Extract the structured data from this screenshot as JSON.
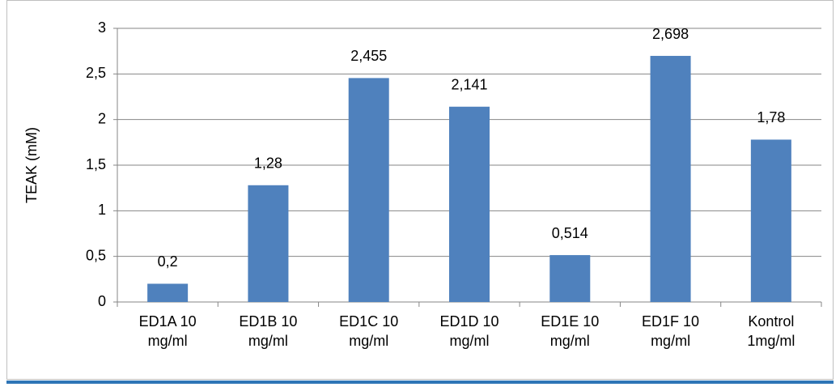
{
  "chart_data": {
    "type": "bar",
    "y_label": "TEAK (mM)",
    "categories": [
      "ED1A 10 mg/ml",
      "ED1B 10 mg/ml",
      "ED1C 10 mg/ml",
      "ED1D 10 mg/ml",
      "ED1E 10 mg/ml",
      "ED1F 10 mg/ml",
      "Kontrol 1mg/ml"
    ],
    "values": [
      0.2,
      1.28,
      2.455,
      2.141,
      0.514,
      2.698,
      1.78
    ],
    "value_labels": [
      "0,2",
      "1,28",
      "2,455",
      "2,141",
      "0,514",
      "2,698",
      "1,78"
    ],
    "color": "#4f81bd",
    "ylim": [
      0,
      3
    ],
    "yticks": [
      0,
      {
        "value": 0.5,
        "label": "0,5"
      },
      1,
      {
        "value": 1.5,
        "label": "1,5"
      },
      2,
      {
        "value": 2.5,
        "label": "2,5"
      },
      3
    ],
    "grid": true
  }
}
